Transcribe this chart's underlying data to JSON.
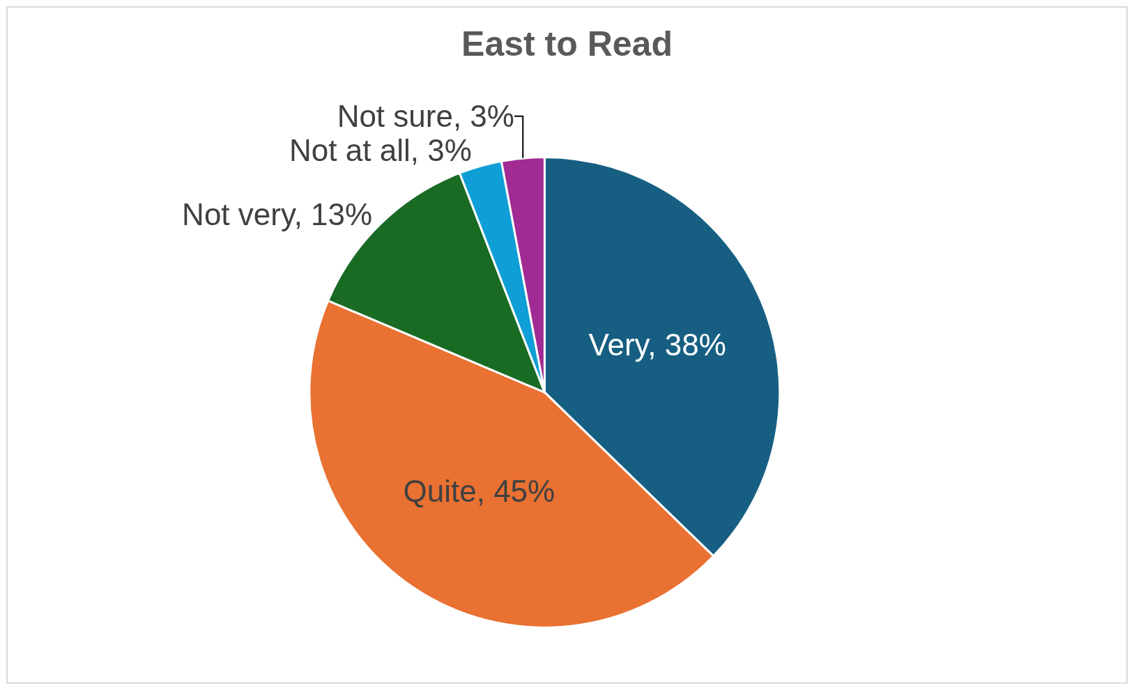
{
  "chart_data": {
    "type": "pie",
    "title": "East to Read",
    "categories": [
      "Very",
      "Quite",
      "Not very",
      "Not at all",
      "Not sure"
    ],
    "values": [
      38,
      45,
      13,
      3,
      3
    ],
    "value_labels": [
      "38%",
      "45%",
      "13%",
      "3%",
      "3%"
    ],
    "colors": [
      "#175f82",
      "#e97132",
      "#196b24",
      "#0f9ed5",
      "#a02b93"
    ],
    "legend": false
  }
}
